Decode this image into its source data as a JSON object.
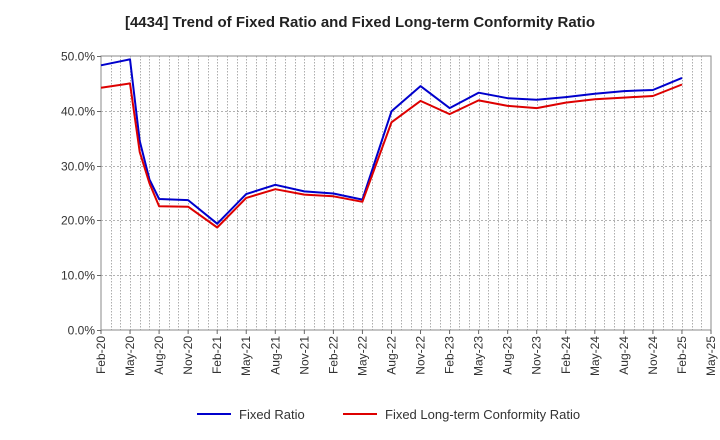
{
  "chart_data": {
    "type": "line",
    "title": "[4434]  Trend of Fixed Ratio and Fixed Long-term Conformity Ratio",
    "xlabel": "",
    "ylabel": "",
    "ylim": [
      0,
      50
    ],
    "y_ticks": [
      "0.0%",
      "10.0%",
      "20.0%",
      "30.0%",
      "40.0%",
      "50.0%"
    ],
    "x_tick_labels": [
      "Feb-20",
      "May-20",
      "Aug-20",
      "Nov-20",
      "Feb-21",
      "May-21",
      "Aug-21",
      "Nov-21",
      "Feb-22",
      "May-22",
      "Aug-22",
      "Nov-22",
      "Feb-23",
      "May-23",
      "Aug-23",
      "Nov-23",
      "Feb-24",
      "May-24",
      "Aug-24",
      "Nov-24",
      "Feb-25",
      "May-25"
    ],
    "grid": true,
    "legend_position": "bottom",
    "x": [
      "Feb-20",
      "May-20",
      "Jun-20",
      "Jul-20",
      "Aug-20",
      "Nov-20",
      "Feb-21",
      "May-21",
      "Aug-21",
      "Nov-21",
      "Feb-22",
      "May-22",
      "Aug-22",
      "Nov-22",
      "Feb-23",
      "May-23",
      "Aug-23",
      "Nov-23",
      "Feb-24",
      "May-24",
      "Aug-24",
      "Nov-24",
      "Feb-25"
    ],
    "series": [
      {
        "name": "Fixed Ratio",
        "color": "#0000cc",
        "values": [
          48.3,
          49.4,
          34.5,
          27.5,
          23.9,
          23.7,
          19.4,
          24.8,
          26.5,
          25.3,
          24.9,
          23.8,
          39.9,
          44.5,
          40.5,
          43.3,
          42.3,
          42.0,
          42.5,
          43.1,
          43.6,
          43.8,
          46.0
        ]
      },
      {
        "name": "Fixed Long-term Conformity Ratio",
        "color": "#dd0000",
        "values": [
          44.2,
          45.0,
          32.5,
          26.8,
          22.6,
          22.5,
          18.7,
          24.1,
          25.7,
          24.7,
          24.4,
          23.4,
          37.9,
          41.8,
          39.4,
          41.9,
          40.9,
          40.5,
          41.5,
          42.1,
          42.4,
          42.7,
          44.8
        ]
      }
    ]
  }
}
